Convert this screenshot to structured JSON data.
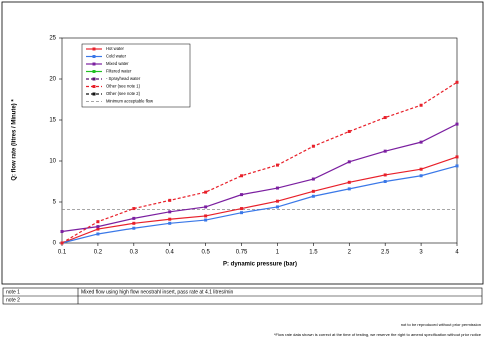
{
  "chart_data": {
    "type": "line",
    "ylabel": "Q: flow rate (litres / Minute) *",
    "xlabel": "P: dynamic pressure (bar)",
    "categories": [
      "0.1",
      "0.2",
      "0.3",
      "0.4",
      "0.5",
      "0.75",
      "1",
      "1.5",
      "2",
      "2.5",
      "3",
      "4"
    ],
    "ylim": [
      0,
      25
    ],
    "yticks": [
      0,
      5,
      10,
      15,
      20,
      25
    ],
    "grid": false,
    "legend": "upper left",
    "series": [
      {
        "name": "Hot water",
        "color": "#e8202a",
        "dashed": false,
        "values": [
          0,
          1.7,
          2.4,
          2.9,
          3.3,
          4.2,
          5.1,
          6.3,
          7.4,
          8.3,
          9.0,
          10.5
        ]
      },
      {
        "name": "Cold water",
        "color": "#3a78e8",
        "dashed": false,
        "values": [
          0,
          1.1,
          1.8,
          2.4,
          2.8,
          3.7,
          4.4,
          5.7,
          6.6,
          7.5,
          8.2,
          9.4
        ]
      },
      {
        "name": "Mixed water",
        "color": "#7b1fa0",
        "dashed": false,
        "values": [
          1.4,
          2.0,
          3.0,
          3.8,
          4.4,
          5.9,
          6.7,
          7.8,
          9.9,
          11.2,
          12.3,
          14.5
        ]
      },
      {
        "name": "Filtered water",
        "color": "#22c022",
        "dashed": false,
        "values": [
          null,
          null,
          null,
          null,
          null,
          null,
          null,
          null,
          null,
          null,
          null,
          null
        ]
      },
      {
        "name": "- Sprayhead water",
        "color": "#5a1070",
        "dashed": true,
        "values": [
          null,
          null,
          null,
          null,
          null,
          null,
          null,
          null,
          null,
          null,
          null,
          null
        ]
      },
      {
        "name": "Other (see note 1)",
        "color": "#e8202a",
        "dashed": true,
        "values": [
          0,
          2.6,
          4.2,
          5.2,
          6.2,
          8.2,
          9.5,
          11.8,
          13.6,
          15.3,
          16.8,
          19.6
        ]
      },
      {
        "name": "Other (see note 2)",
        "color": "#111111",
        "dashed": true,
        "values": [
          null,
          null,
          null,
          null,
          null,
          null,
          null,
          null,
          null,
          null,
          null,
          null
        ]
      }
    ],
    "reference_line": {
      "name": "Minimum acceptable flow",
      "value": 4.1,
      "color": "#888888"
    }
  },
  "notes": [
    {
      "label": "note 1",
      "text": "Mixed flow using high flow neostrahl insert, pass rate at 4.1 litres/min"
    },
    {
      "label": "note 2"
    }
  ],
  "footer": [
    "not to be reproduced without prior permission",
    "*Flow rate data shown is correct at the time of testing, we reserve the right to amend specification without prior notice"
  ]
}
